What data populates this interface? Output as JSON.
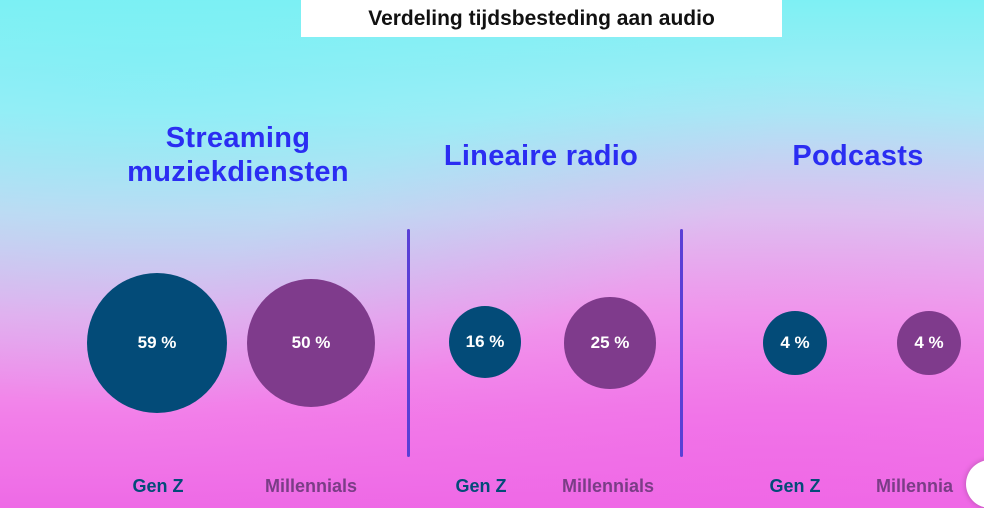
{
  "title": "Verdeling tijdsbesteding aan audio",
  "colors": {
    "gen_z": "#034b78",
    "millennials": "#7f3b8c",
    "section_title": "#2b2df2",
    "divider": "#5a3fd6",
    "gen_z_label": "#034b78",
    "millennials_label": "#7a3d86"
  },
  "chart_data": {
    "type": "bubble",
    "title": "Verdeling tijdsbesteding aan audio",
    "unit": "%",
    "categories": [
      "Streaming muziekdiensten",
      "Lineaire radio",
      "Podcasts"
    ],
    "series": [
      {
        "name": "Gen Z",
        "values": [
          59,
          16,
          4
        ]
      },
      {
        "name": "Millennials",
        "values": [
          50,
          25,
          4
        ]
      }
    ]
  },
  "sections": [
    {
      "title_line1": "Streaming",
      "title_line2": "muziekdiensten",
      "gen_z_value_label": "59 %",
      "millennials_value_label": "50 %",
      "gen_z_label": "Gen Z",
      "millennials_label": "Millennials"
    },
    {
      "title_line1": "Lineaire radio",
      "title_line2": "",
      "gen_z_value_label": "16 %",
      "millennials_value_label": "25 %",
      "gen_z_label": "Gen Z",
      "millennials_label": "Millennials"
    },
    {
      "title_line1": "Podcasts",
      "title_line2": "",
      "gen_z_value_label": "4 %",
      "millennials_value_label": "4 %",
      "gen_z_label": "Gen Z",
      "millennials_label": "Millennia"
    }
  ]
}
